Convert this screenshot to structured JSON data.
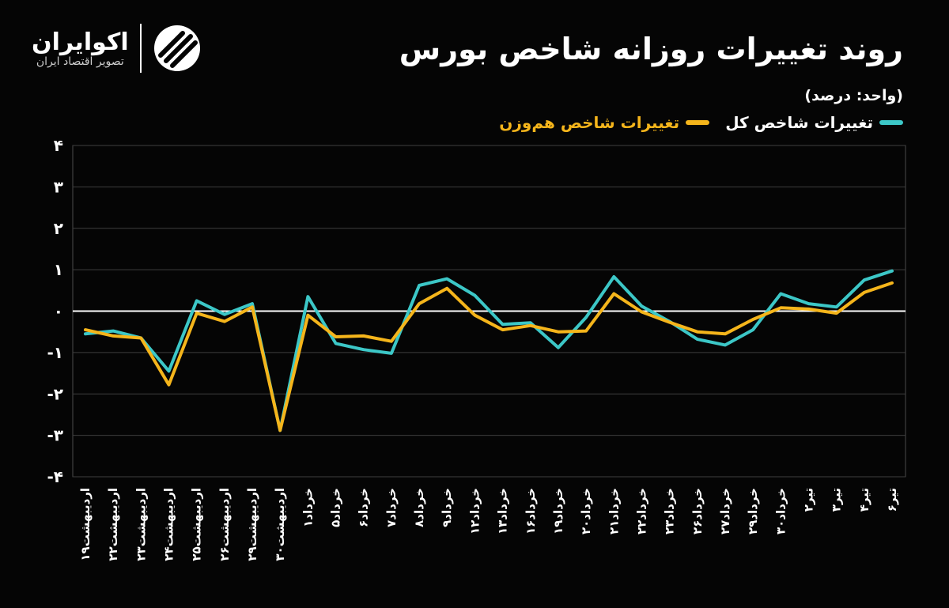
{
  "brand": {
    "name": "اکوایران",
    "tagline": "تصویر اقتصاد ایران"
  },
  "header": {
    "title": "روند تغییرات روزانه شاخص بورس",
    "unit": "(واحد: درصد)"
  },
  "colors": {
    "background": "#050505",
    "series_total": "#3cc7c7",
    "series_equal": "#f5b51b",
    "axis": "#ffffff"
  },
  "chart_data": {
    "type": "line",
    "title": "روند تغییرات روزانه شاخص بورس",
    "ylabel": "(واحد: درصد)",
    "xlabel": "",
    "ylim": [
      -4,
      4
    ],
    "yticks": [
      4,
      3,
      2,
      1,
      0,
      -1,
      -2,
      -3,
      -4
    ],
    "ytick_labels": [
      "۴",
      "۳",
      "۲",
      "۱",
      "۰",
      "-۱",
      "-۲",
      "-۳",
      "-۴"
    ],
    "grid": true,
    "legend_position": "top-right",
    "categories": [
      "اردیبهشت۱۹",
      "اردیبهشت۲۲",
      "اردیبهشت۲۳",
      "اردیبهشت۲۴",
      "اردیبهشت۲۵",
      "اردیبهشت۲۶",
      "اردیبهشت۲۹",
      "اردیبهشت۳۰",
      "خرداد۱",
      "خرداد۵",
      "خرداد۶",
      "خرداد۷",
      "خرداد۸",
      "خرداد۹",
      "خرداد۱۲",
      "خرداد۱۳",
      "خرداد۱۶",
      "خرداد۱۹",
      "خرداد۲۰",
      "خرداد۲۱",
      "خرداد۲۲",
      "خرداد۲۳",
      "خرداد۲۶",
      "خرداد۲۷",
      "خرداد۲۹",
      "خرداد۳۰",
      "تیر۲",
      "تیر۳",
      "تیر۴",
      "تیر۶"
    ],
    "series": [
      {
        "name": "تغییرات شاخص کل",
        "color": "#3cc7c7",
        "values": [
          -0.55,
          -0.48,
          -0.65,
          -1.45,
          0.25,
          -0.08,
          0.18,
          -2.88,
          0.35,
          -0.78,
          -0.93,
          -1.02,
          0.62,
          0.78,
          0.38,
          -0.32,
          -0.28,
          -0.88,
          -0.15,
          0.83,
          0.12,
          -0.25,
          -0.68,
          -0.82,
          -0.45,
          0.42,
          0.18,
          0.1,
          0.75,
          0.97
        ]
      },
      {
        "name": "تغییرات شاخص هم‌وزن",
        "color": "#f5b51b",
        "values": [
          -0.45,
          -0.6,
          -0.65,
          -1.78,
          -0.05,
          -0.25,
          0.1,
          -2.88,
          -0.1,
          -0.62,
          -0.6,
          -0.73,
          0.18,
          0.55,
          -0.1,
          -0.45,
          -0.35,
          -0.5,
          -0.48,
          0.42,
          -0.02,
          -0.27,
          -0.5,
          -0.55,
          -0.2,
          0.08,
          0.05,
          -0.05,
          0.45,
          0.68
        ]
      }
    ]
  }
}
